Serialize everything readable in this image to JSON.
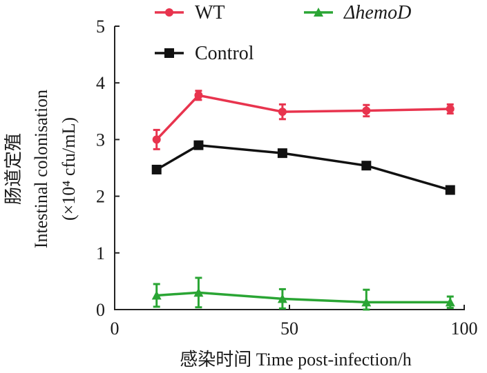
{
  "chart_data": {
    "type": "line",
    "title": "",
    "xlabel": "感染时间 Time post-infection/h",
    "ylabel_lines": [
      "肠道定殖",
      "Intestinal colonisation",
      "(×10⁴ cfu/mL)"
    ],
    "xlim": [
      0,
      100
    ],
    "ylim": [
      0,
      5
    ],
    "xticks": [
      "0",
      "50",
      "100"
    ],
    "xtick_values": [
      0,
      50,
      100
    ],
    "yticks": [
      "0",
      "1",
      "2",
      "3",
      "4",
      "5"
    ],
    "ytick_values": [
      0,
      1,
      2,
      3,
      4,
      5
    ],
    "grid": false,
    "legend_placement": "top",
    "x": [
      12,
      24,
      48,
      72,
      96
    ],
    "series": [
      {
        "name": "WT",
        "italic": false,
        "color": "#e8344e",
        "marker": "circle",
        "values": [
          3.0,
          3.78,
          3.49,
          3.51,
          3.54
        ],
        "errors": [
          0.17,
          0.08,
          0.13,
          0.1,
          0.08
        ]
      },
      {
        "name": "ΔhemoD",
        "italic": true,
        "color": "#2aa534",
        "marker": "triangle",
        "values": [
          0.25,
          0.3,
          0.19,
          0.13,
          0.13
        ],
        "errors": [
          0.2,
          0.26,
          0.17,
          0.22,
          0.1
        ]
      },
      {
        "name": "Control",
        "italic": false,
        "color": "#111111",
        "marker": "square",
        "values": [
          2.47,
          2.9,
          2.76,
          2.54,
          2.11
        ],
        "errors": [
          0.04,
          0.03,
          0.02,
          0.06,
          0.05
        ]
      }
    ]
  }
}
